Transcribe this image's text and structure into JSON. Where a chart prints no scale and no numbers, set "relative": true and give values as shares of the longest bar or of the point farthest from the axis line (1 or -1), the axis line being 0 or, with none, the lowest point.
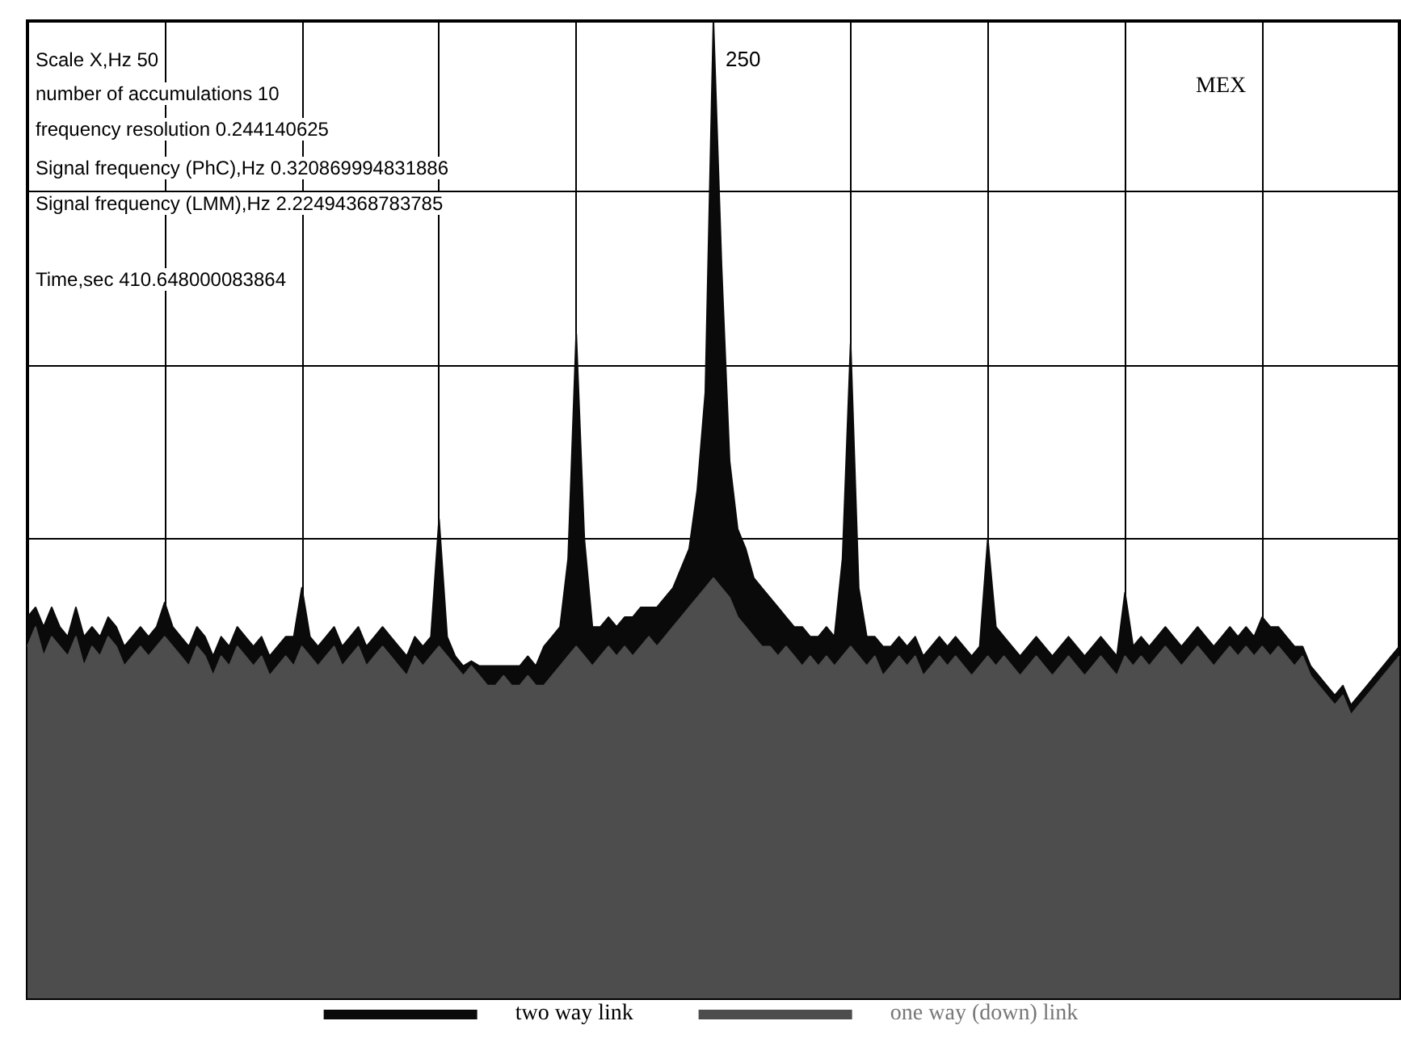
{
  "chart_data": {
    "type": "area",
    "relative": true,
    "grid": true,
    "legend": "bottom",
    "tick_labels": false,
    "marker": "none",
    "categories": [
      null,
      null,
      null,
      null,
      null,
      null,
      null,
      null,
      null,
      null,
      null,
      null,
      null,
      null,
      null,
      null,
      null,
      null,
      null,
      null,
      null,
      null,
      null,
      null,
      null,
      null,
      null,
      null,
      null,
      null,
      null,
      null,
      null,
      null,
      null,
      null,
      null,
      null,
      null,
      null,
      null,
      null,
      null,
      null,
      null,
      null,
      null,
      null,
      null,
      null,
      null,
      null,
      null,
      null,
      null,
      null,
      null,
      null,
      null,
      null,
      null,
      null,
      null,
      null,
      null,
      null,
      null,
      null,
      null,
      null,
      null,
      null,
      null,
      null,
      null,
      null,
      null,
      null,
      null,
      null,
      null,
      null,
      null,
      null,
      null,
      null,
      null,
      null,
      null,
      null,
      null,
      null,
      null,
      null,
      null,
      null,
      null,
      null,
      null,
      null,
      null,
      null,
      null,
      null,
      null,
      null,
      null,
      null,
      null,
      null,
      null,
      null,
      null,
      null,
      null,
      null,
      null,
      null,
      null,
      null,
      null,
      null,
      null,
      null,
      null,
      null,
      null,
      null,
      null,
      null,
      null,
      null,
      null,
      null,
      null,
      null,
      null,
      null,
      null,
      null,
      null,
      null,
      null,
      null,
      null,
      null,
      null,
      null,
      null,
      null,
      null,
      null,
      null,
      null,
      null,
      null,
      null,
      null,
      null,
      null,
      null,
      null,
      null,
      null,
      null,
      null,
      null,
      null,
      null,
      null,
      null
    ],
    "series": [
      {
        "name": "two way link",
        "color": "#0a0a0a",
        "values": [
          0.39,
          0.4,
          0.38,
          0.4,
          0.38,
          0.37,
          0.4,
          0.37,
          0.38,
          0.37,
          0.39,
          0.38,
          0.36,
          0.37,
          0.38,
          0.37,
          0.38,
          0.405,
          0.38,
          0.37,
          0.36,
          0.38,
          0.37,
          0.35,
          0.37,
          0.36,
          0.38,
          0.37,
          0.36,
          0.37,
          0.35,
          0.36,
          0.37,
          0.37,
          0.42,
          0.37,
          0.36,
          0.37,
          0.38,
          0.36,
          0.37,
          0.38,
          0.36,
          0.37,
          0.38,
          0.37,
          0.36,
          0.35,
          0.37,
          0.36,
          0.37,
          0.49,
          0.37,
          0.35,
          0.34,
          0.345,
          0.34,
          0.34,
          0.34,
          0.34,
          0.34,
          0.34,
          0.35,
          0.34,
          0.36,
          0.37,
          0.38,
          0.45,
          0.68,
          0.47,
          0.38,
          0.38,
          0.39,
          0.38,
          0.39,
          0.39,
          0.4,
          0.4,
          0.4,
          0.41,
          0.42,
          0.44,
          0.46,
          0.52,
          0.62,
          1,
          0.75,
          0.55,
          0.48,
          0.46,
          0.43,
          0.42,
          0.41,
          0.4,
          0.39,
          0.38,
          0.38,
          0.37,
          0.37,
          0.38,
          0.37,
          0.45,
          0.67,
          0.42,
          0.37,
          0.37,
          0.36,
          0.36,
          0.37,
          0.36,
          0.37,
          0.35,
          0.36,
          0.37,
          0.36,
          0.37,
          0.36,
          0.35,
          0.36,
          0.47,
          0.38,
          0.37,
          0.36,
          0.35,
          0.36,
          0.37,
          0.36,
          0.35,
          0.36,
          0.37,
          0.36,
          0.35,
          0.36,
          0.37,
          0.36,
          0.35,
          0.415,
          0.36,
          0.37,
          0.36,
          0.37,
          0.38,
          0.37,
          0.36,
          0.37,
          0.38,
          0.37,
          0.36,
          0.37,
          0.38,
          0.37,
          0.38,
          0.37,
          0.39,
          0.38,
          0.38,
          0.37,
          0.36,
          0.36,
          0.34,
          0.33,
          0.32,
          0.31,
          0.32,
          0.3,
          0.31,
          0.32,
          0.33,
          0.34,
          0.35,
          0.36
        ]
      },
      {
        "name": "one way (down) link",
        "color": "#4d4d4d",
        "values": [
          0.36,
          0.38,
          0.35,
          0.37,
          0.36,
          0.35,
          0.37,
          0.34,
          0.36,
          0.35,
          0.37,
          0.36,
          0.34,
          0.35,
          0.36,
          0.35,
          0.36,
          0.37,
          0.36,
          0.35,
          0.34,
          0.36,
          0.35,
          0.33,
          0.35,
          0.34,
          0.36,
          0.35,
          0.34,
          0.35,
          0.33,
          0.34,
          0.35,
          0.34,
          0.36,
          0.35,
          0.34,
          0.35,
          0.36,
          0.34,
          0.35,
          0.36,
          0.34,
          0.35,
          0.36,
          0.35,
          0.34,
          0.33,
          0.35,
          0.34,
          0.35,
          0.36,
          0.35,
          0.34,
          0.33,
          0.34,
          0.33,
          0.32,
          0.32,
          0.33,
          0.32,
          0.32,
          0.33,
          0.32,
          0.32,
          0.33,
          0.34,
          0.35,
          0.36,
          0.35,
          0.34,
          0.35,
          0.36,
          0.35,
          0.36,
          0.35,
          0.36,
          0.37,
          0.36,
          0.37,
          0.38,
          0.39,
          0.4,
          0.41,
          0.42,
          0.43,
          0.42,
          0.41,
          0.39,
          0.38,
          0.37,
          0.36,
          0.36,
          0.35,
          0.36,
          0.35,
          0.34,
          0.35,
          0.34,
          0.35,
          0.34,
          0.35,
          0.36,
          0.35,
          0.34,
          0.35,
          0.33,
          0.34,
          0.35,
          0.34,
          0.35,
          0.33,
          0.34,
          0.35,
          0.34,
          0.35,
          0.34,
          0.33,
          0.34,
          0.35,
          0.34,
          0.35,
          0.34,
          0.33,
          0.34,
          0.35,
          0.34,
          0.33,
          0.34,
          0.35,
          0.34,
          0.33,
          0.34,
          0.35,
          0.34,
          0.33,
          0.35,
          0.34,
          0.35,
          0.34,
          0.35,
          0.36,
          0.35,
          0.34,
          0.35,
          0.36,
          0.35,
          0.34,
          0.35,
          0.36,
          0.35,
          0.36,
          0.35,
          0.36,
          0.35,
          0.36,
          0.35,
          0.34,
          0.35,
          0.33,
          0.32,
          0.31,
          0.3,
          0.31,
          0.29,
          0.3,
          0.31,
          0.32,
          0.33,
          0.34,
          0.35
        ]
      }
    ],
    "annotations": [
      "Scale X,Hz  50",
      "number of accumulations  10",
      "frequency resolution  0.244140625",
      "Signal frequency (PhC),Hz  0.320869994831886",
      "Signal frequency (LMM),Hz  2.22494368783785",
      "Time,sec  410.648000083864",
      "250",
      "MEX"
    ]
  }
}
